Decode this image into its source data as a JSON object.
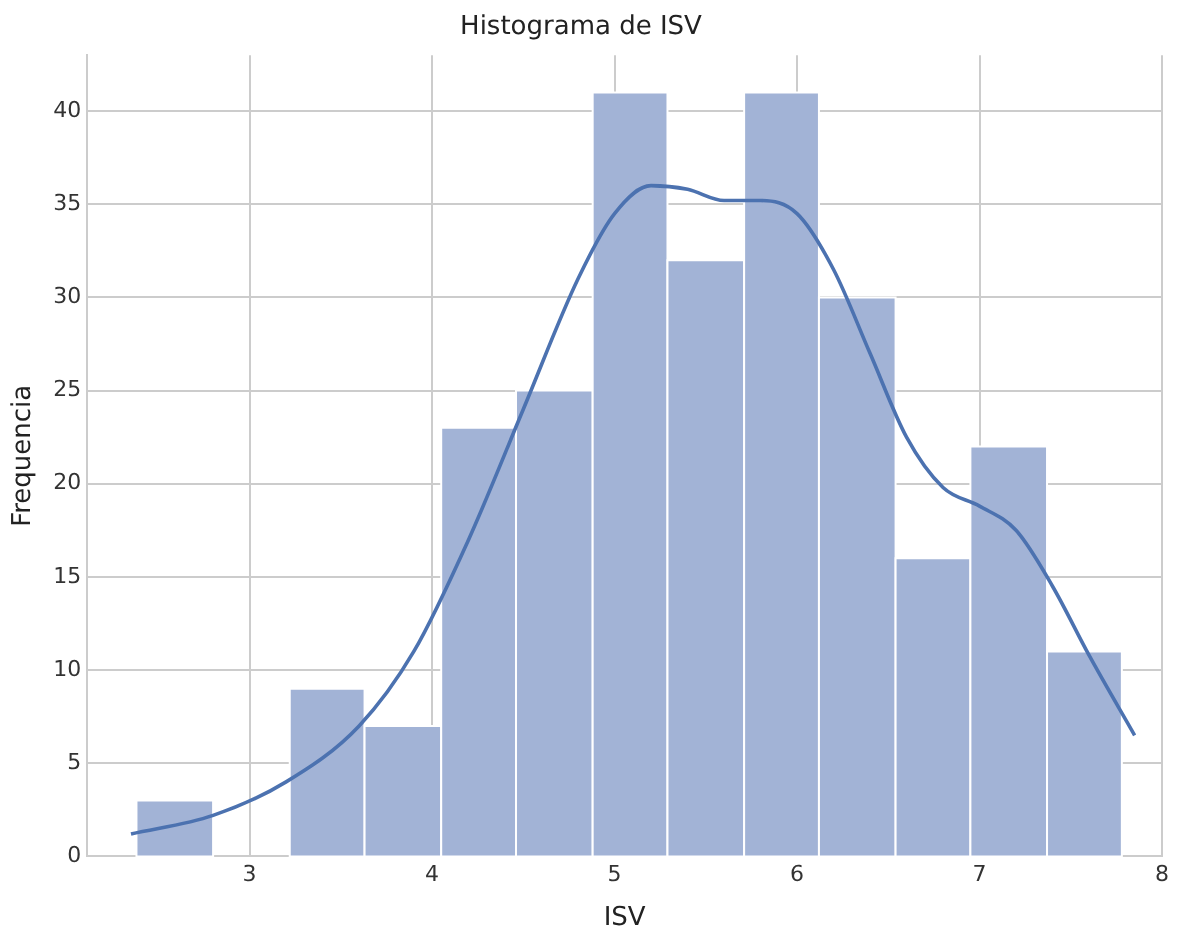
{
  "chart_data": {
    "type": "histogram",
    "title": "Histograma de ISV",
    "xlabel": "ISV",
    "ylabel": "Frequencia",
    "bins": [
      2.38,
      2.8,
      3.22,
      3.63,
      4.05,
      4.46,
      4.88,
      5.29,
      5.71,
      6.12,
      6.54,
      6.95,
      7.37,
      7.78
    ],
    "values": [
      3,
      0,
      9,
      7,
      23,
      25,
      41,
      32,
      41,
      30,
      16,
      22,
      11
    ],
    "color": "#a2b3d6",
    "series": [
      {
        "type": "line",
        "color": "#4c72b0",
        "x": [
          2.35,
          2.8,
          3.2,
          3.6,
          3.9,
          4.2,
          4.5,
          4.8,
          5.0,
          5.2,
          5.4,
          5.6,
          5.8,
          6.0,
          6.2,
          6.4,
          6.6,
          6.8,
          7.0,
          7.2,
          7.4,
          7.6,
          7.85
        ],
        "values": [
          1.2,
          2.2,
          4,
          7,
          11,
          17,
          24,
          31,
          34.5,
          36,
          35.8,
          35.2,
          35.2,
          34.5,
          31.5,
          27,
          22.5,
          19.8,
          18.8,
          17.5,
          14.5,
          10.8,
          6.5
        ]
      }
    ],
    "xlim": [
      2.11,
      8.0
    ],
    "xticks": [
      3,
      4,
      5,
      6,
      7,
      8
    ],
    "ylim": [
      0,
      43
    ],
    "yticks": [
      0,
      5,
      10,
      15,
      20,
      25,
      30,
      35,
      40
    ],
    "grid": true
  }
}
